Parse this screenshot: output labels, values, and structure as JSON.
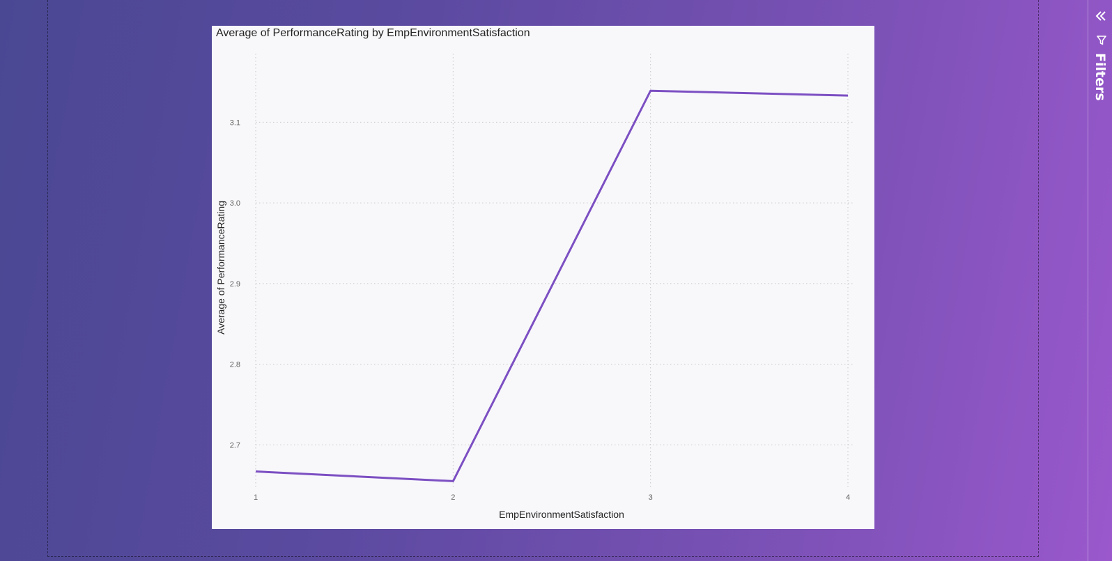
{
  "filters_pane": {
    "label": "Filters",
    "collapse_icon": "chevron-double-left-icon",
    "filter_icon": "funnel-icon"
  },
  "colors": {
    "line": "#7c4fc2",
    "gridline": "#c8c6c4",
    "plot_background": "#f8f8fb"
  },
  "chart_data": {
    "type": "line",
    "title": "Average of PerformanceRating by EmpEnvironmentSatisfaction",
    "xlabel": "EmpEnvironmentSatisfaction",
    "ylabel": "Average of PerformanceRating",
    "categories": [
      "1",
      "2",
      "3",
      "4"
    ],
    "series": [
      {
        "values": [
          2.667,
          2.655,
          3.139,
          3.133
        ]
      }
    ],
    "yticks": [
      "2.7",
      "2.8",
      "2.9",
      "3.0",
      "3.1"
    ],
    "ylim": [
      2.645,
      3.185
    ],
    "grid": true,
    "grid_style": "dotted",
    "legend": "none"
  }
}
